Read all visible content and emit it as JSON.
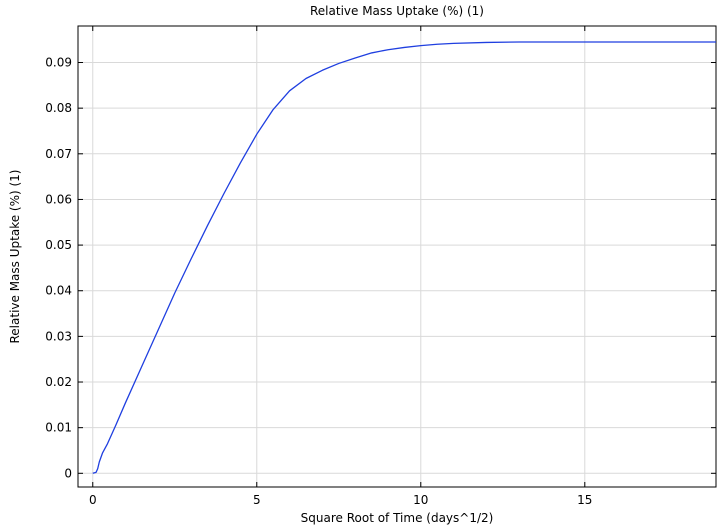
{
  "chart_data": {
    "type": "line",
    "title": "Relative Mass Uptake (%) (1)",
    "xlabel": "Square Root of Time (days^1/2)",
    "ylabel": "Relative Mass Uptake (%) (1)",
    "xlim": [
      -0.45,
      19.0
    ],
    "ylim": [
      -0.003,
      0.098
    ],
    "grid": true,
    "x_ticks": [
      0,
      5,
      10,
      15
    ],
    "x_tick_labels": [
      "0",
      "5",
      "10",
      "15"
    ],
    "y_ticks": [
      0,
      0.01,
      0.02,
      0.03,
      0.04,
      0.05,
      0.06,
      0.07,
      0.08,
      0.09
    ],
    "y_tick_labels": [
      "0",
      "0.01",
      "0.02",
      "0.03",
      "0.04",
      "0.05",
      "0.06",
      "0.07",
      "0.08",
      "0.09"
    ],
    "series": [
      {
        "color": "#1f3fe0",
        "x": [
          0,
          0.1,
          0.15,
          0.2,
          0.3,
          0.45,
          0.7,
          1.0,
          1.5,
          2.0,
          2.5,
          3.0,
          3.5,
          4.0,
          4.5,
          5.0,
          5.5,
          6.0,
          6.5,
          7.0,
          7.5,
          8.0,
          8.5,
          9.0,
          9.5,
          10.0,
          10.5,
          11.0,
          12.0,
          13.0,
          14.0,
          15.0,
          16.0,
          17.0,
          18.0,
          19.0
        ],
        "y": [
          0,
          0.0002,
          0.001,
          0.0025,
          0.0045,
          0.0065,
          0.0105,
          0.0155,
          0.0235,
          0.0315,
          0.0395,
          0.047,
          0.0543,
          0.0613,
          0.068,
          0.0743,
          0.0797,
          0.0838,
          0.0865,
          0.0883,
          0.0898,
          0.091,
          0.0921,
          0.0928,
          0.0933,
          0.0937,
          0.094,
          0.0942,
          0.0944,
          0.0945,
          0.0945,
          0.0945,
          0.0945,
          0.0945,
          0.0945,
          0.0945
        ]
      }
    ]
  }
}
